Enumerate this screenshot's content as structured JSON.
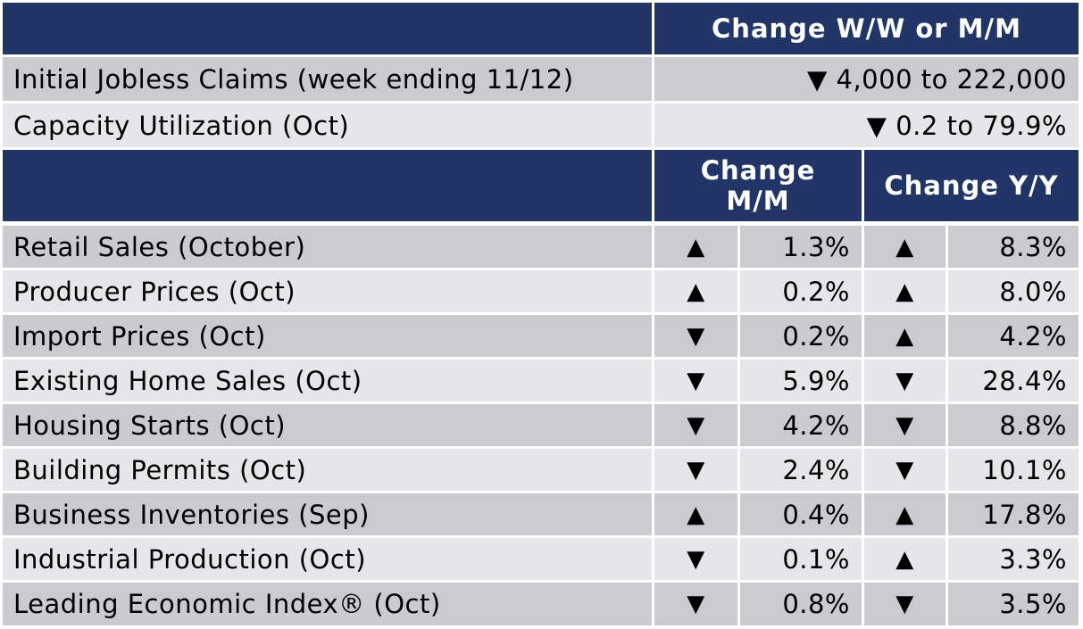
{
  "header_top": {
    "label": "",
    "change_label": "Change W/W or M/M"
  },
  "weekly_rows": [
    {
      "label": "Initial Jobless Claims (week ending 11/12)",
      "change": "▼ 4,000 to 222,000"
    },
    {
      "label": "Capacity Utilization (Oct)",
      "change": "▼ 0.2 to 79.9%"
    }
  ],
  "header_bottom": {
    "label": "",
    "mm_label": "Change M/M",
    "yy_label": "Change Y/Y"
  },
  "monthly_rows": [
    {
      "label": "Retail Sales (October)",
      "mm_dir": "▲",
      "mm_value": "1.3%",
      "yy_dir": "▲",
      "yy_value": "8.3%"
    },
    {
      "label": "Producer Prices (Oct)",
      "mm_dir": "▲",
      "mm_value": "0.2%",
      "yy_dir": "▲",
      "yy_value": "8.0%"
    },
    {
      "label": "Import Prices (Oct)",
      "mm_dir": "▼",
      "mm_value": "0.2%",
      "yy_dir": "▲",
      "yy_value": "4.2%"
    },
    {
      "label": "Existing Home Sales (Oct)",
      "mm_dir": "▼",
      "mm_value": "5.9%",
      "yy_dir": "▼",
      "yy_value": "28.4%"
    },
    {
      "label": "Housing Starts (Oct)",
      "mm_dir": "▼",
      "mm_value": "4.2%",
      "yy_dir": "▼",
      "yy_value": "8.8%"
    },
    {
      "label": "Building Permits (Oct)",
      "mm_dir": "▼",
      "mm_value": "2.4%",
      "yy_dir": "▼",
      "yy_value": "10.1%"
    },
    {
      "label": "Business Inventories (Sep)",
      "mm_dir": "▲",
      "mm_value": "0.4%",
      "yy_dir": "▲",
      "yy_value": "17.8%"
    },
    {
      "label": "Industrial Production (Oct)",
      "mm_dir": "▼",
      "mm_value": "0.1%",
      "yy_dir": "▲",
      "yy_value": "3.3%"
    },
    {
      "label": "Leading Economic Index® (Oct)",
      "mm_dir": "▼",
      "mm_value": "0.8%",
      "yy_dir": "▼",
      "yy_value": "3.5%"
    }
  ],
  "colors": {
    "header": "#223567",
    "row_dark": "#cbcbcf",
    "row_light": "#e6e6e9"
  }
}
